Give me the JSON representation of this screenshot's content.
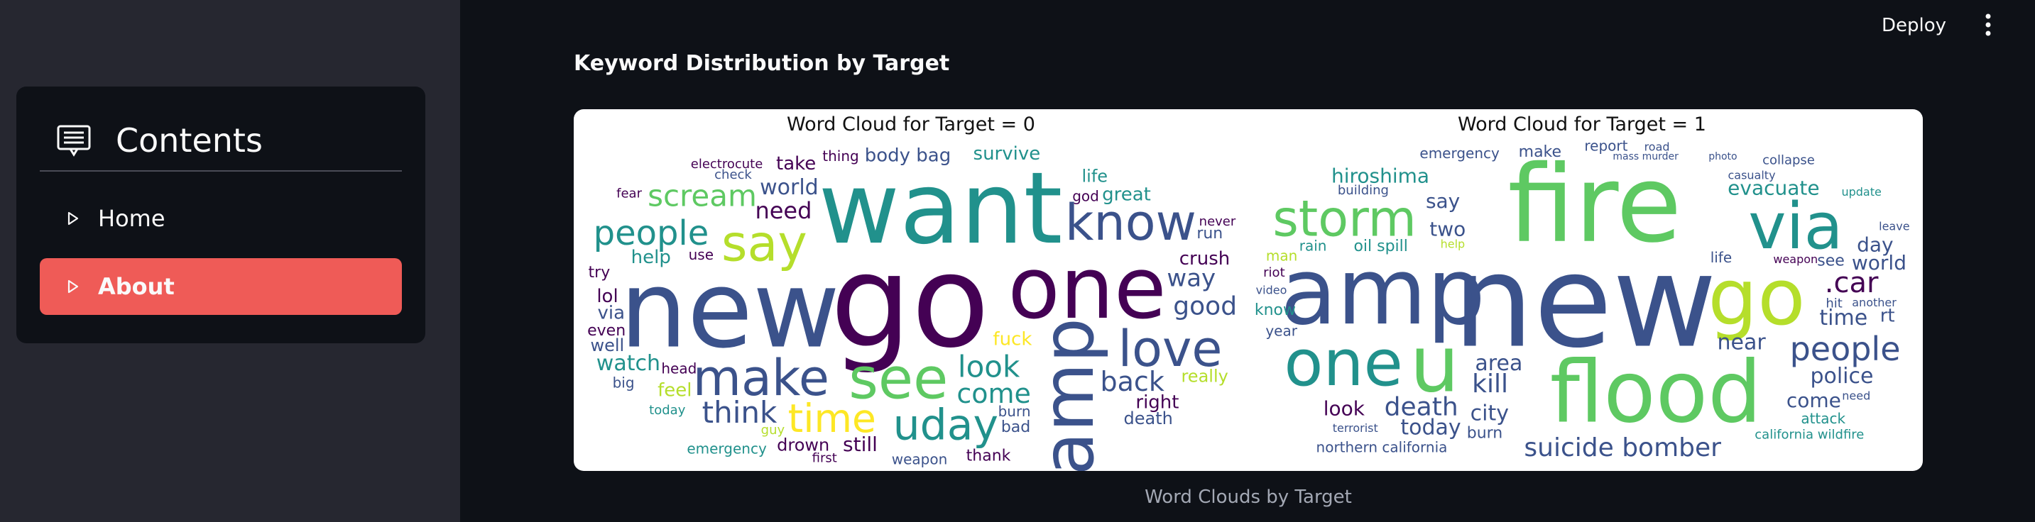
{
  "sidebar": {
    "toc_title": "Contents",
    "items": [
      {
        "label": "Home",
        "active": false
      },
      {
        "label": "About",
        "active": true
      }
    ]
  },
  "topbar": {
    "deploy_label": "Deploy"
  },
  "main": {
    "section_title": "Keyword Distribution by Target",
    "figure_caption": "Word Clouds by Target",
    "panels": [
      {
        "title": "Word Cloud for Target = 0"
      },
      {
        "title": "Word Cloud for Target = 1"
      }
    ]
  },
  "colors": {
    "background": "#0e1117",
    "sidebar": "#262730",
    "accent": "#ef5b57",
    "viridis": [
      "#440154",
      "#3b528b",
      "#21918c",
      "#5ec962",
      "#b5de2b",
      "#fde725"
    ]
  },
  "wordclouds": {
    "target_0": [
      {
        "text": "amp",
        "size": 100,
        "color": "#3b528b",
        "rotate": true
      },
      {
        "text": "want",
        "size": 140,
        "color": "#21918c"
      },
      {
        "text": "go",
        "size": 180,
        "color": "#440154"
      },
      {
        "text": "new",
        "size": 150,
        "color": "#3b528b"
      },
      {
        "text": "one",
        "size": 120,
        "color": "#440154"
      },
      {
        "text": "make",
        "size": 70,
        "color": "#3b528b"
      },
      {
        "text": "see",
        "size": 80,
        "color": "#5ec962"
      },
      {
        "text": "say",
        "size": 70,
        "color": "#b5de2b"
      },
      {
        "text": "know",
        "size": 70,
        "color": "#3b528b"
      },
      {
        "text": "love",
        "size": 70,
        "color": "#3b528b"
      },
      {
        "text": "uday",
        "size": 60,
        "color": "#21918c"
      },
      {
        "text": "time",
        "size": 55,
        "color": "#fde725"
      },
      {
        "text": "people",
        "size": 48,
        "color": "#21918c"
      },
      {
        "text": "look",
        "size": 42,
        "color": "#21918c"
      },
      {
        "text": "scream",
        "size": 42,
        "color": "#5ec962"
      },
      {
        "text": "think",
        "size": 42,
        "color": "#3b528b"
      },
      {
        "text": "back",
        "size": 38,
        "color": "#3b528b"
      },
      {
        "text": "come",
        "size": 38,
        "color": "#21918c"
      },
      {
        "text": "good",
        "size": 36,
        "color": "#3b528b"
      },
      {
        "text": "way",
        "size": 34,
        "color": "#3b528b"
      },
      {
        "text": "watch",
        "size": 30,
        "color": "#21918c"
      },
      {
        "text": "need",
        "size": 32,
        "color": "#440154"
      },
      {
        "text": "world",
        "size": 30,
        "color": "#3b528b"
      },
      {
        "text": "body bag",
        "size": 26,
        "color": "#3b528b"
      },
      {
        "text": "great",
        "size": 26,
        "color": "#21918c"
      },
      {
        "text": "help",
        "size": 26,
        "color": "#21918c"
      },
      {
        "text": "still",
        "size": 28,
        "color": "#440154"
      },
      {
        "text": "crush",
        "size": 26,
        "color": "#440154"
      },
      {
        "text": "fuck",
        "size": 26,
        "color": "#fde725"
      },
      {
        "text": "really",
        "size": 24,
        "color": "#b5de2b"
      },
      {
        "text": "feel",
        "size": 26,
        "color": "#b5de2b"
      },
      {
        "text": "drown",
        "size": 24,
        "color": "#440154"
      },
      {
        "text": "lol",
        "size": 26,
        "color": "#440154"
      },
      {
        "text": "take",
        "size": 26,
        "color": "#440154"
      },
      {
        "text": "right",
        "size": 26,
        "color": "#440154"
      },
      {
        "text": "survive",
        "size": 26,
        "color": "#21918c"
      },
      {
        "text": "death",
        "size": 24,
        "color": "#3b528b"
      },
      {
        "text": "life",
        "size": 24,
        "color": "#21918c"
      },
      {
        "text": "weapon",
        "size": 20,
        "color": "#3b528b"
      },
      {
        "text": "even",
        "size": 22,
        "color": "#440154"
      },
      {
        "text": "emergency",
        "size": 20,
        "color": "#21918c"
      },
      {
        "text": "thank",
        "size": 22,
        "color": "#440154"
      },
      {
        "text": "run",
        "size": 22,
        "color": "#3b528b"
      },
      {
        "text": "try",
        "size": 22,
        "color": "#440154"
      },
      {
        "text": "god",
        "size": 20,
        "color": "#440154"
      },
      {
        "text": "well",
        "size": 24,
        "color": "#3b528b"
      },
      {
        "text": "via",
        "size": 26,
        "color": "#3b528b"
      },
      {
        "text": "electrocute",
        "size": 18,
        "color": "#440154"
      },
      {
        "text": "today",
        "size": 18,
        "color": "#21918c"
      },
      {
        "text": "head",
        "size": 20,
        "color": "#440154"
      },
      {
        "text": "thing",
        "size": 20,
        "color": "#440154"
      },
      {
        "text": "use",
        "size": 20,
        "color": "#440154"
      },
      {
        "text": "big",
        "size": 20,
        "color": "#3b528b"
      },
      {
        "text": "fear",
        "size": 18,
        "color": "#440154"
      },
      {
        "text": "check",
        "size": 18,
        "color": "#3b528b"
      },
      {
        "text": "guy",
        "size": 18,
        "color": "#b5de2b"
      },
      {
        "text": "burn",
        "size": 20,
        "color": "#3b528b"
      },
      {
        "text": "never",
        "size": 18,
        "color": "#440154"
      },
      {
        "text": "first",
        "size": 18,
        "color": "#440154"
      },
      {
        "text": "bad",
        "size": 22,
        "color": "#3b528b"
      }
    ],
    "target_1": [
      {
        "text": "new",
        "size": 180,
        "color": "#3b528b"
      },
      {
        "text": "fire",
        "size": 150,
        "color": "#5ec962"
      },
      {
        "text": "amp",
        "size": 130,
        "color": "#3b528b"
      },
      {
        "text": "flood",
        "size": 120,
        "color": "#5ec962"
      },
      {
        "text": "go",
        "size": 110,
        "color": "#b5de2b"
      },
      {
        "text": "via",
        "size": 90,
        "color": "#21918c"
      },
      {
        "text": "one",
        "size": 90,
        "color": "#21918c"
      },
      {
        "text": "storm",
        "size": 70,
        "color": "#5ec962"
      },
      {
        "text": "u",
        "size": 110,
        "color": "#5ec962"
      },
      {
        "text": "people",
        "size": 46,
        "color": "#3b528b"
      },
      {
        "text": "suicide bomber",
        "size": 36,
        "color": "#3b528b"
      },
      {
        "text": "kill",
        "size": 36,
        "color": "#3b528b"
      },
      {
        "text": ".car",
        "size": 40,
        "color": "#440154"
      },
      {
        "text": "death",
        "size": 36,
        "color": "#3b528b"
      },
      {
        "text": "area",
        "size": 30,
        "color": "#3b528b"
      },
      {
        "text": "time",
        "size": 30,
        "color": "#3b528b"
      },
      {
        "text": "today",
        "size": 30,
        "color": "#3b528b"
      },
      {
        "text": "world",
        "size": 28,
        "color": "#3b528b"
      },
      {
        "text": "hiroshima",
        "size": 28,
        "color": "#21918c"
      },
      {
        "text": "police",
        "size": 30,
        "color": "#3b528b"
      },
      {
        "text": "evacuate",
        "size": 28,
        "color": "#21918c"
      },
      {
        "text": "near",
        "size": 30,
        "color": "#3b528b"
      },
      {
        "text": "come",
        "size": 28,
        "color": "#3b528b"
      },
      {
        "text": "city",
        "size": 30,
        "color": "#3b528b"
      },
      {
        "text": "say",
        "size": 28,
        "color": "#3b528b"
      },
      {
        "text": "look",
        "size": 28,
        "color": "#440154"
      },
      {
        "text": "day",
        "size": 28,
        "color": "#3b528b"
      },
      {
        "text": "two",
        "size": 28,
        "color": "#3b528b"
      },
      {
        "text": "know",
        "size": 22,
        "color": "#21918c"
      },
      {
        "text": "make",
        "size": 22,
        "color": "#3b528b"
      },
      {
        "text": "northern california",
        "size": 20,
        "color": "#3b528b"
      },
      {
        "text": "oil spill",
        "size": 22,
        "color": "#21918c"
      },
      {
        "text": "emergency",
        "size": 20,
        "color": "#3b528b"
      },
      {
        "text": "california wildfire",
        "size": 18,
        "color": "#21918c"
      },
      {
        "text": "burn",
        "size": 22,
        "color": "#3b528b"
      },
      {
        "text": "report",
        "size": 20,
        "color": "#3b528b"
      },
      {
        "text": "attack",
        "size": 20,
        "color": "#21918c"
      },
      {
        "text": "rain",
        "size": 20,
        "color": "#21918c"
      },
      {
        "text": "riot",
        "size": 18,
        "color": "#440154"
      },
      {
        "text": "collapse",
        "size": 18,
        "color": "#3b528b"
      },
      {
        "text": "building",
        "size": 18,
        "color": "#3b528b"
      },
      {
        "text": "man",
        "size": 20,
        "color": "#b5de2b"
      },
      {
        "text": "rt",
        "size": 26,
        "color": "#3b528b"
      },
      {
        "text": "see",
        "size": 22,
        "color": "#3b528b"
      },
      {
        "text": "year",
        "size": 20,
        "color": "#3b528b"
      },
      {
        "text": "life",
        "size": 20,
        "color": "#3b528b"
      },
      {
        "text": "video",
        "size": 16,
        "color": "#3b528b"
      },
      {
        "text": "weapon",
        "size": 16,
        "color": "#440154"
      },
      {
        "text": "hit",
        "size": 18,
        "color": "#3b528b"
      },
      {
        "text": "help",
        "size": 16,
        "color": "#b5de2b"
      },
      {
        "text": "casualty",
        "size": 16,
        "color": "#3b528b"
      },
      {
        "text": "leave",
        "size": 16,
        "color": "#3b528b"
      },
      {
        "text": "another",
        "size": 16,
        "color": "#3b528b"
      },
      {
        "text": "need",
        "size": 16,
        "color": "#3b528b"
      },
      {
        "text": "road",
        "size": 16,
        "color": "#3b528b"
      },
      {
        "text": "terrorist",
        "size": 16,
        "color": "#3b528b"
      },
      {
        "text": "mass murder",
        "size": 14,
        "color": "#3b528b"
      },
      {
        "text": "update",
        "size": 16,
        "color": "#21918c"
      },
      {
        "text": "photo",
        "size": 14,
        "color": "#3b528b"
      }
    ]
  }
}
